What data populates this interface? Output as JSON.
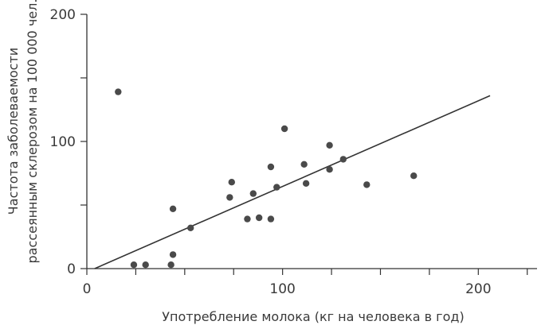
{
  "chart_data": {
    "type": "scatter",
    "title": "",
    "xlabel": "Употребление молока (кг на человека в год)",
    "ylabel_lines": [
      "Частота заболеваемости",
      "рассеянным склерозом на 100 000 чел."
    ],
    "xlim": [
      0,
      230
    ],
    "ylim": [
      0,
      200
    ],
    "x_ticks": [
      0,
      100,
      200
    ],
    "y_ticks": [
      0,
      100,
      200
    ],
    "x_minor_ticks": [
      25,
      50,
      75,
      125,
      150,
      175,
      225
    ],
    "y_minor_ticks": [
      50,
      150
    ],
    "grid": false,
    "series": [
      {
        "points": [
          {
            "x": 16,
            "y": 139
          },
          {
            "x": 24,
            "y": 3
          },
          {
            "x": 30,
            "y": 3
          },
          {
            "x": 43,
            "y": 3
          },
          {
            "x": 44,
            "y": 11
          },
          {
            "x": 44,
            "y": 47
          },
          {
            "x": 53,
            "y": 32
          },
          {
            "x": 73,
            "y": 56
          },
          {
            "x": 74,
            "y": 68
          },
          {
            "x": 82,
            "y": 39
          },
          {
            "x": 85,
            "y": 59
          },
          {
            "x": 88,
            "y": 40
          },
          {
            "x": 94,
            "y": 39
          },
          {
            "x": 94,
            "y": 80
          },
          {
            "x": 97,
            "y": 64
          },
          {
            "x": 101,
            "y": 110
          },
          {
            "x": 111,
            "y": 82
          },
          {
            "x": 112,
            "y": 67
          },
          {
            "x": 124,
            "y": 97
          },
          {
            "x": 124,
            "y": 78
          },
          {
            "x": 131,
            "y": 86
          },
          {
            "x": 143,
            "y": 66
          },
          {
            "x": 167,
            "y": 73
          }
        ]
      }
    ],
    "trendline": {
      "x1": 4,
      "y1": 0,
      "x2": 206,
      "y2": 136
    }
  },
  "colors": {
    "point": "#4a4a4a",
    "axis": "#333333",
    "line": "#333333"
  }
}
